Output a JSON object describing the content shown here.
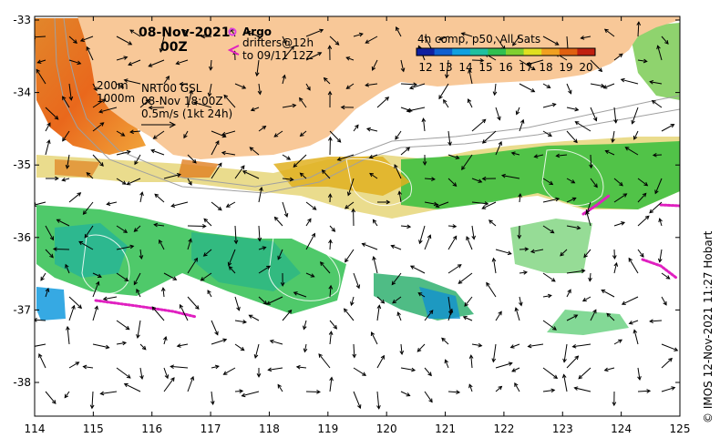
{
  "header": {
    "date": "08-Nov-2021",
    "time": "00Z"
  },
  "legend": {
    "argo_label": "Argo",
    "drifter_line1": "drifters@12h",
    "drifter_line2": "to 09/11 12Z",
    "argo_color": "#e040e0"
  },
  "isobaths": {
    "shallow": "200m",
    "deep": "1000m"
  },
  "currents": {
    "line1": "NRT00 GSL",
    "line2": "08-Nov 18:00Z",
    "line3": "0.5m/s (1kt 24h)"
  },
  "colorbar": {
    "title": "4h comp, p50, All Sats",
    "ticks": [
      "12",
      "13",
      "14",
      "15",
      "16",
      "17",
      "18",
      "19",
      "20"
    ],
    "colors": [
      "#1020a0",
      "#1060d0",
      "#10a0e0",
      "#20c0a0",
      "#30c050",
      "#80d030",
      "#e0e020",
      "#f0a020",
      "#e06010",
      "#c02010"
    ]
  },
  "axes": {
    "x_ticks": [
      "114",
      "115",
      "116",
      "117",
      "118",
      "119",
      "120",
      "121",
      "122",
      "123",
      "124",
      "125"
    ],
    "y_ticks": [
      "-33",
      "-34",
      "-35",
      "-36",
      "-37",
      "-38"
    ]
  },
  "credit": "© IMOS 12-Nov-2021 11:27 Hobart",
  "colors": {
    "land": "#f8c898",
    "drifter": "#e020c0"
  }
}
